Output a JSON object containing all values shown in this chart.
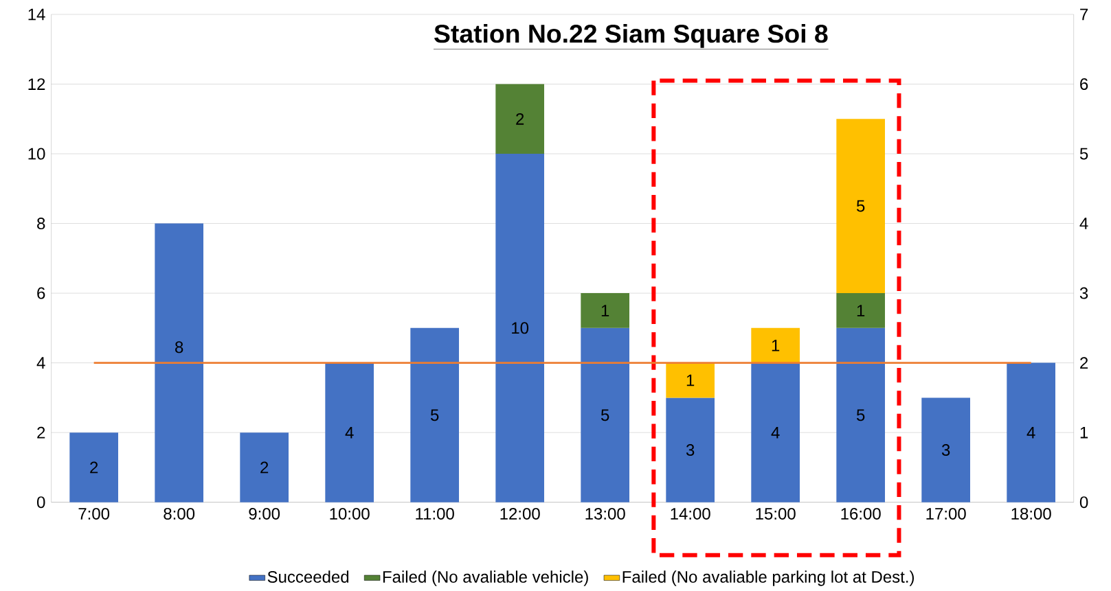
{
  "chart_data": {
    "type": "bar",
    "title": "**Station No.22 Siam Square Soi 8**",
    "categories": [
      "7:00",
      "8:00",
      "9:00",
      "10:00",
      "11:00",
      "12:00",
      "13:00",
      "14:00",
      "15:00",
      "16:00",
      "17:00",
      "18:00"
    ],
    "stacked": true,
    "series": [
      {
        "name": "Succeeded",
        "color": "#4472c4",
        "values": [
          2,
          8,
          2,
          4,
          5,
          10,
          5,
          3,
          4,
          5,
          3,
          4
        ],
        "value_labels": [
          "2",
          "8",
          "2",
          "4",
          "5",
          "10",
          "5",
          "3",
          "4",
          "5",
          "3",
          "4"
        ]
      },
      {
        "name": "Failed (No avaliable vehicle)",
        "color": "#548235",
        "values": [
          null,
          null,
          null,
          null,
          null,
          2,
          1,
          null,
          null,
          1,
          null,
          null
        ],
        "value_labels": [
          null,
          null,
          null,
          null,
          null,
          "2",
          "1",
          null,
          null,
          "1",
          null,
          null
        ]
      },
      {
        "name": "Failed (No avaliable parking lot at Dest.)",
        "color": "#ffc000",
        "values": [
          null,
          null,
          null,
          null,
          null,
          null,
          null,
          1,
          1,
          5,
          null,
          null
        ],
        "value_labels": [
          null,
          null,
          null,
          null,
          null,
          null,
          null,
          "1",
          "1",
          "5",
          null,
          null
        ]
      },
      {
        "type": "line",
        "axis": "y2",
        "color": "#ed7d31",
        "values": [
          2,
          2,
          2,
          2,
          2,
          2,
          2,
          2,
          2,
          2,
          2,
          2
        ]
      }
    ],
    "ylim": [
      0,
      14
    ],
    "yticks": [
      0,
      2,
      4,
      6,
      8,
      10,
      12,
      14
    ],
    "y2lim": [
      0,
      7
    ],
    "y2ticks": [
      0,
      1,
      2,
      3,
      4,
      5,
      6,
      7
    ],
    "grid": "y",
    "legend": "bottom"
  }
}
